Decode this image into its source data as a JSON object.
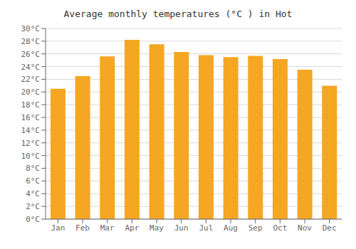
{
  "chart_data": {
    "type": "bar",
    "title": "Average monthly temperatures (°C ) in Hot",
    "categories": [
      "Jan",
      "Feb",
      "Mar",
      "Apr",
      "May",
      "Jun",
      "Jul",
      "Aug",
      "Sep",
      "Oct",
      "Nov",
      "Dec"
    ],
    "values": [
      20.5,
      22.5,
      25.6,
      28.2,
      27.5,
      26.3,
      25.8,
      25.5,
      25.7,
      25.2,
      23.5,
      21.0
    ],
    "color": "#F5A623",
    "ylim": [
      0,
      30
    ],
    "yticks": [
      {
        "value": 0,
        "label": "0°C"
      },
      {
        "value": 2,
        "label": "2°C"
      },
      {
        "value": 4,
        "label": "4°C"
      },
      {
        "value": 6,
        "label": "6°C"
      },
      {
        "value": 8,
        "label": "8°C"
      },
      {
        "value": 10,
        "label": "10°C"
      },
      {
        "value": 12,
        "label": "12°C"
      },
      {
        "value": 14,
        "label": "14°C"
      },
      {
        "value": 16,
        "label": "16°C"
      },
      {
        "value": 18,
        "label": "18°C"
      },
      {
        "value": 20,
        "label": "20°C"
      },
      {
        "value": 22,
        "label": "22°C"
      },
      {
        "value": 24,
        "label": "24°C"
      },
      {
        "value": 26,
        "label": "26°C"
      },
      {
        "value": 28,
        "label": "28°C"
      },
      {
        "value": 30,
        "label": "30°C"
      }
    ],
    "grid": true
  }
}
